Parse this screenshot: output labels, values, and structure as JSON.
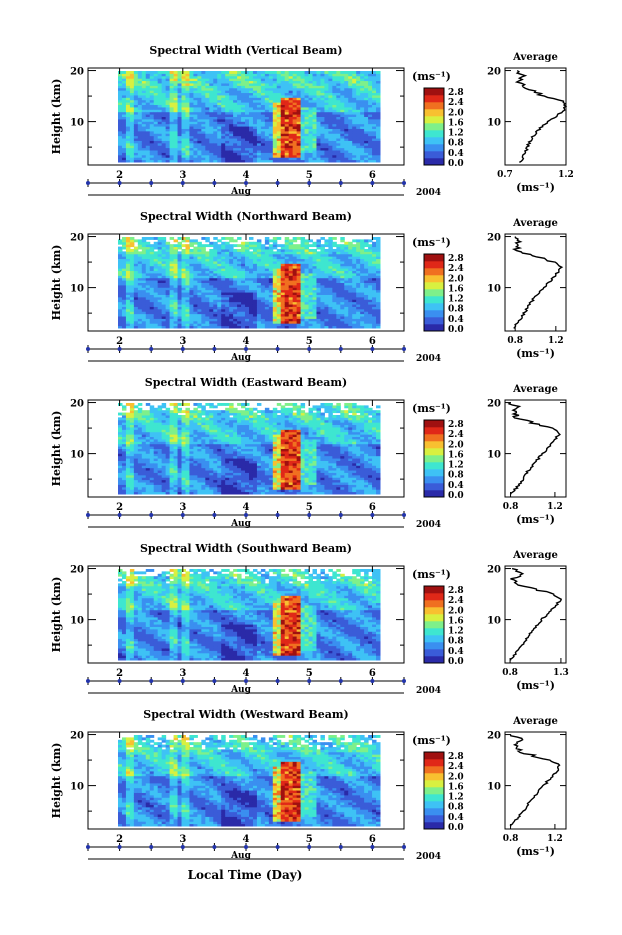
{
  "figure": {
    "x_axis_title": "Local Time (Day)",
    "colorbar_unit": "(ms⁻¹)",
    "average_title": "Average",
    "average_xlabel": "(ms⁻¹)",
    "y_axis_label": "Height (km)",
    "month_label": "Aug",
    "year_label": "2004"
  },
  "colors": {
    "colormap": [
      "#2a2aa8",
      "#3a5cd8",
      "#3a8ff0",
      "#3ec2f5",
      "#3ee6d0",
      "#7ef08a",
      "#d8f040",
      "#f8c030",
      "#f07020",
      "#e02818",
      "#a01010"
    ],
    "day_marker": "#2233aa"
  },
  "chart_data": [
    {
      "type": "heatmap",
      "title": "Spectral Width (Vertical Beam)",
      "ylabel": "Height (km)",
      "xlabel": "Aug",
      "x_ticks": [
        "2",
        "3",
        "4",
        "5",
        "6"
      ],
      "y_ticks": [
        10,
        20
      ],
      "ylim": [
        1.5,
        20.5
      ],
      "xlim": [
        1.5,
        6.5
      ],
      "colorbar": {
        "unit": "(ms⁻¹)",
        "ticks": [
          "0.0",
          "0.4",
          "0.8",
          "1.2",
          "1.6",
          "2.0",
          "2.4",
          "2.8"
        ],
        "range": [
          0.0,
          2.8
        ]
      },
      "average_profile": {
        "title": "Average",
        "xlabel": "(ms⁻¹)",
        "x_ticks": [
          "0.7",
          "1.2"
        ],
        "xlim": [
          0.7,
          1.2
        ],
        "height_km": [
          2,
          3,
          4,
          5,
          6,
          7,
          8,
          9,
          10,
          11,
          12,
          13,
          14,
          15,
          16,
          17,
          18,
          19,
          20
        ],
        "value": [
          0.82,
          0.85,
          0.87,
          0.88,
          0.9,
          0.93,
          0.96,
          1.0,
          1.06,
          1.12,
          1.17,
          1.2,
          1.18,
          1.02,
          0.92,
          0.86,
          0.82,
          0.84,
          0.8
        ]
      },
      "year_label": "2004"
    },
    {
      "type": "heatmap",
      "title": "Spectral Width (Northward Beam)",
      "ylabel": "Height (km)",
      "xlabel": "Aug",
      "x_ticks": [
        "2",
        "3",
        "4",
        "5",
        "6"
      ],
      "y_ticks": [
        10,
        20
      ],
      "ylim": [
        1.5,
        20.5
      ],
      "xlim": [
        1.5,
        6.5
      ],
      "colorbar": {
        "unit": "(ms⁻¹)",
        "ticks": [
          "0.0",
          "0.4",
          "0.8",
          "1.2",
          "1.6",
          "2.0",
          "2.4",
          "2.8"
        ],
        "range": [
          0.0,
          2.8
        ]
      },
      "average_profile": {
        "title": "Average",
        "xlabel": "(ms⁻¹)",
        "x_ticks": [
          "0.8",
          "1.2"
        ],
        "xlim": [
          0.7,
          1.3
        ],
        "height_km": [
          2,
          3,
          4,
          5,
          6,
          7,
          8,
          9,
          10,
          11,
          12,
          13,
          14,
          15,
          16,
          17,
          18,
          19,
          20
        ],
        "value": [
          0.78,
          0.82,
          0.86,
          0.89,
          0.92,
          0.95,
          0.99,
          1.03,
          1.08,
          1.13,
          1.18,
          1.22,
          1.25,
          1.2,
          1.0,
          0.85,
          0.8,
          0.86,
          0.8
        ]
      },
      "year_label": "2004"
    },
    {
      "type": "heatmap",
      "title": "Spectral Width (Eastward Beam)",
      "ylabel": "Height (km)",
      "xlabel": "Aug",
      "x_ticks": [
        "2",
        "3",
        "4",
        "5",
        "6"
      ],
      "y_ticks": [
        10,
        20
      ],
      "ylim": [
        1.5,
        20.5
      ],
      "xlim": [
        1.5,
        6.5
      ],
      "colorbar": {
        "unit": "(ms⁻¹)",
        "ticks": [
          "0.0",
          "0.4",
          "0.8",
          "1.2",
          "1.6",
          "2.0",
          "2.4",
          "2.8"
        ],
        "range": [
          0.0,
          2.8
        ]
      },
      "average_profile": {
        "title": "Average",
        "xlabel": "(ms⁻¹)",
        "x_ticks": [
          "0.8",
          "1.2"
        ],
        "xlim": [
          0.75,
          1.3
        ],
        "height_km": [
          2,
          3,
          4,
          5,
          6,
          7,
          8,
          9,
          10,
          11,
          12,
          13,
          14,
          15,
          16,
          17,
          18,
          19,
          20
        ],
        "value": [
          0.8,
          0.84,
          0.88,
          0.91,
          0.94,
          0.97,
          1.01,
          1.05,
          1.09,
          1.13,
          1.17,
          1.21,
          1.24,
          1.18,
          1.0,
          0.86,
          0.82,
          0.88,
          0.8
        ]
      },
      "year_label": "2004"
    },
    {
      "type": "heatmap",
      "title": "Spectral Width (Southward Beam)",
      "ylabel": "Height (km)",
      "xlabel": "Aug",
      "x_ticks": [
        "2",
        "3",
        "4",
        "5",
        "6"
      ],
      "y_ticks": [
        10,
        20
      ],
      "ylim": [
        1.5,
        20.5
      ],
      "xlim": [
        1.5,
        6.5
      ],
      "colorbar": {
        "unit": "(ms⁻¹)",
        "ticks": [
          "0.0",
          "0.4",
          "0.8",
          "1.2",
          "1.6",
          "2.0",
          "2.4",
          "2.8"
        ],
        "range": [
          0.0,
          2.8
        ]
      },
      "average_profile": {
        "title": "Average",
        "xlabel": "(ms⁻¹)",
        "x_ticks": [
          "0.8",
          "1.3"
        ],
        "xlim": [
          0.75,
          1.35
        ],
        "height_km": [
          2,
          3,
          4,
          5,
          6,
          7,
          8,
          9,
          10,
          11,
          12,
          13,
          14,
          15,
          16,
          17,
          18,
          19,
          20
        ],
        "value": [
          0.8,
          0.84,
          0.88,
          0.92,
          0.95,
          0.99,
          1.03,
          1.07,
          1.11,
          1.16,
          1.21,
          1.26,
          1.3,
          1.22,
          1.02,
          0.88,
          0.84,
          0.9,
          0.82
        ]
      },
      "year_label": "2004"
    },
    {
      "type": "heatmap",
      "title": "Spectral Width (Westward Beam)",
      "ylabel": "Height (km)",
      "xlabel": "Aug",
      "x_ticks": [
        "2",
        "3",
        "4",
        "5",
        "6"
      ],
      "y_ticks": [
        10,
        20
      ],
      "ylim": [
        1.5,
        20.5
      ],
      "xlim": [
        1.5,
        6.5
      ],
      "colorbar": {
        "unit": "(ms⁻¹)",
        "ticks": [
          "0.0",
          "0.4",
          "0.8",
          "1.2",
          "1.6",
          "2.0",
          "2.4",
          "2.8"
        ],
        "range": [
          0.0,
          2.8
        ]
      },
      "average_profile": {
        "title": "Average",
        "xlabel": "(ms⁻¹)",
        "x_ticks": [
          "0.8",
          "1.2"
        ],
        "xlim": [
          0.75,
          1.3
        ],
        "height_km": [
          2,
          3,
          4,
          5,
          6,
          7,
          8,
          9,
          10,
          11,
          12,
          13,
          14,
          15,
          16,
          17,
          18,
          19,
          20
        ],
        "value": [
          0.8,
          0.84,
          0.88,
          0.91,
          0.95,
          0.98,
          1.02,
          1.06,
          1.1,
          1.14,
          1.18,
          1.22,
          1.24,
          1.16,
          0.98,
          0.86,
          0.82,
          0.9,
          0.8
        ]
      },
      "year_label": "2004"
    }
  ]
}
